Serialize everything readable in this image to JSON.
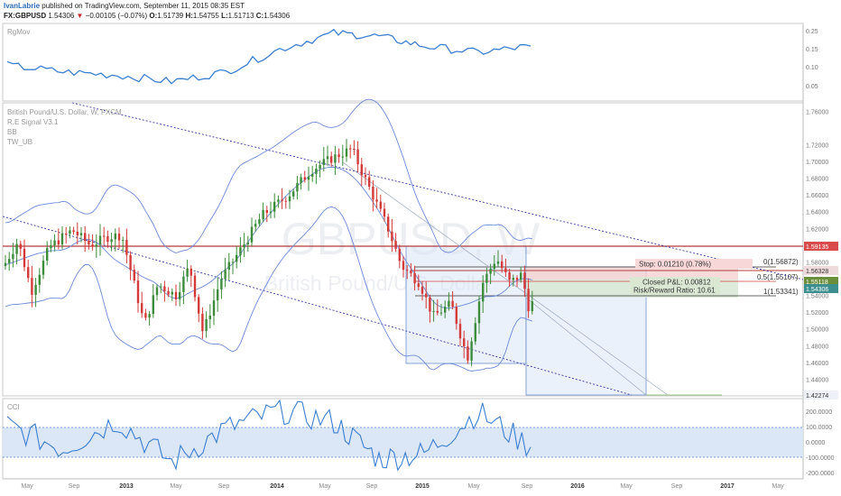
{
  "header": {
    "author": "IvanLabrie",
    "published": "published on TradingView.com, September 11, 2015 08:35 EST",
    "symbol": "FX:GBPUSD",
    "last": "1.54306",
    "change_arrow": "▼",
    "change": "−0.00105 (−0.07%)",
    "o_label": "O:",
    "o_value": "1.51739",
    "h_label": "H:",
    "h_value": "1.54755",
    "l_label": "L:",
    "l_value": "1.51713",
    "c_label": "C:",
    "c_value": "1.54306"
  },
  "top_pane": {
    "label": "RgMov",
    "ticks": [
      "0.25",
      "0.15",
      "0.10",
      "0.05"
    ]
  },
  "main_pane": {
    "labels": [
      "British Pound/U.S. Dollar, W, FXCM",
      "R.E Signal V3.1",
      "BB",
      "TW_UB"
    ],
    "watermark_symbol": "GBPUSD, W",
    "watermark_name": "British Pound/U.S. Dollar",
    "ticks": [
      "1.76000",
      "1.72000",
      "1.70000",
      "1.68000",
      "1.66000",
      "1.64000",
      "1.62000",
      "1.60000",
      "1.58000",
      "1.56000",
      "1.54000",
      "1.52000",
      "1.50000",
      "1.48000",
      "1.46000",
      "1.44000"
    ],
    "price_tags": [
      {
        "text": "1.59135",
        "color": "#d94a4a"
      },
      {
        "text": "1.56328",
        "color": "#eedada"
      },
      {
        "text": "1.55118",
        "color": "#6b8e3a"
      },
      {
        "text": "1.54306",
        "color": "#3d8f8f"
      },
      {
        "text": "1.42274",
        "color": "#eef1f7"
      }
    ],
    "fib_labels": [
      "0(1.56872)",
      "0.5(1.55107)",
      "1(1.53341)"
    ],
    "position": {
      "stop": "Stop: 0.01210 (0.78%)",
      "pnl": "Closed P&L: 0.00812",
      "rr": "Risk/Reward Ratio: 10.61"
    }
  },
  "bottom_pane": {
    "label": "CCI",
    "ticks": [
      "200.0000",
      "100.0000",
      "0.0000",
      "-100.0000",
      "-200.0000"
    ]
  },
  "x_axis": {
    "labels": [
      "May",
      "Sep",
      "2013",
      "May",
      "Sep",
      "2014",
      "May",
      "Sep",
      "2015",
      "May",
      "Sep",
      "2016",
      "May",
      "Sep",
      "2017",
      "May"
    ]
  },
  "colors": {
    "bull": "#3c8c3c",
    "bear": "#d43a3a",
    "band": "#5a7fd0",
    "indicator": "#3c7fd0",
    "box_fill": "#dbe6f7"
  },
  "chart_data": [
    {
      "type": "line",
      "title": "RgMov",
      "x": [
        "2012-05",
        "2012-09",
        "2013-01",
        "2013-05",
        "2013-09",
        "2014-01",
        "2014-05",
        "2014-09",
        "2015-01",
        "2015-05",
        "2015-09"
      ],
      "series": [
        {
          "name": "RgMov",
          "values": [
            0.14,
            0.12,
            0.11,
            0.09,
            0.12,
            0.19,
            0.24,
            0.23,
            0.2,
            0.18,
            0.2
          ]
        }
      ],
      "ylim": [
        0.03,
        0.27
      ]
    },
    {
      "type": "line",
      "title": "British Pound/U.S. Dollar, W, FXCM",
      "x": [
        "2012-05",
        "2012-07",
        "2012-09",
        "2012-11",
        "2013-01",
        "2013-03",
        "2013-05",
        "2013-07",
        "2013-09",
        "2013-11",
        "2014-01",
        "2014-03",
        "2014-05",
        "2014-07",
        "2014-09",
        "2014-11",
        "2015-01",
        "2015-03",
        "2015-05",
        "2015-06",
        "2015-08",
        "2015-09"
      ],
      "series": [
        {
          "name": "close",
          "values": [
            1.57,
            1.55,
            1.6,
            1.59,
            1.62,
            1.5,
            1.55,
            1.52,
            1.6,
            1.63,
            1.65,
            1.67,
            1.69,
            1.71,
            1.63,
            1.57,
            1.52,
            1.48,
            1.53,
            1.58,
            1.56,
            1.54
          ]
        }
      ],
      "levels": [
        1.59135,
        1.56328,
        1.55118,
        1.54306,
        1.42274
      ],
      "ylim": [
        1.42,
        1.77
      ]
    },
    {
      "type": "line",
      "title": "CCI",
      "x": [
        "2012-05",
        "2012-09",
        "2013-01",
        "2013-05",
        "2013-09",
        "2014-01",
        "2014-05",
        "2014-09",
        "2015-01",
        "2015-05",
        "2015-09"
      ],
      "series": [
        {
          "name": "CCI",
          "values": [
            80,
            -60,
            110,
            -140,
            60,
            170,
            100,
            -120,
            -90,
            160,
            -50
          ]
        }
      ],
      "ylim": [
        -240,
        240
      ]
    }
  ]
}
